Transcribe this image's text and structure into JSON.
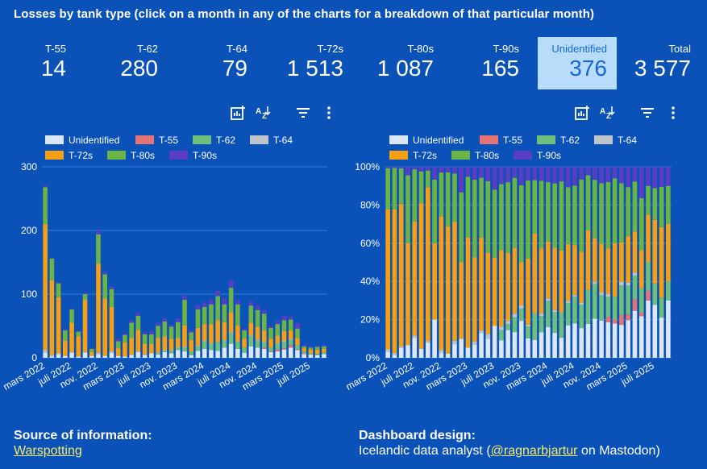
{
  "header": {
    "title": "Losses by tank type (click on a month in any of the charts for a breakdown of that particular month)"
  },
  "kpis": [
    {
      "label": "T-55",
      "value": "14",
      "selected": false
    },
    {
      "label": "T-62",
      "value": "280",
      "selected": false
    },
    {
      "label": "T-64",
      "value": "79",
      "selected": false
    },
    {
      "label": "T-72s",
      "value": "1 513",
      "selected": false
    },
    {
      "label": "T-80s",
      "value": "1 087",
      "selected": false
    },
    {
      "label": "T-90s",
      "value": "165",
      "selected": false
    },
    {
      "label": "Unidentified",
      "value": "376",
      "selected": true
    },
    {
      "label": "Total",
      "value": "3 577",
      "selected": false
    }
  ],
  "toolbar_icons": [
    "explore-chart-icon",
    "sort-az-icon",
    "filter-icon",
    "more-vert-icon"
  ],
  "legend": [
    {
      "name": "Unidentified",
      "color": "#dbe7f7"
    },
    {
      "name": "T-55",
      "color": "#e57373"
    },
    {
      "name": "T-62",
      "color": "#6fbf7b"
    },
    {
      "name": "T-64",
      "color": "#bfc4cc"
    },
    {
      "name": "T-72s",
      "color": "#f5a012"
    },
    {
      "name": "T-80s",
      "color": "#6bb345"
    },
    {
      "name": "T-90s",
      "color": "#5b3cc4"
    }
  ],
  "chart_data": [
    {
      "type": "bar",
      "stacked": true,
      "ylim": [
        0,
        300
      ],
      "yticks": [
        "0",
        "100",
        "200",
        "300"
      ],
      "xtick_labels": [
        "mars 2022",
        "juli 2022",
        "nov. 2022",
        "mars 2023",
        "juli 2023",
        "nov. 2023",
        "mars 2024",
        "juli 2024",
        "nov. 2024",
        "mars 2025",
        "juli 2025"
      ],
      "xtick_every": 4,
      "grid": true,
      "totals": [
        270,
        157,
        118,
        45,
        77,
        42,
        102,
        15,
        200,
        135,
        112,
        30,
        38,
        59,
        70,
        40,
        42,
        55,
        62,
        52,
        62,
        98,
        43,
        82,
        87,
        92,
        105,
        94,
        122,
        90,
        45,
        88,
        82,
        75,
        50,
        58,
        66,
        65,
        55,
        20,
        18,
        19,
        20
      ],
      "series": [
        {
          "name": "Unidentified",
          "values": [
            8,
            2,
            6,
            3,
            8,
            2,
            8,
            3,
            5,
            3,
            8,
            3,
            2,
            4,
            9,
            4,
            7,
            5,
            9,
            7,
            12,
            10,
            4,
            11,
            14,
            12,
            11,
            16,
            22,
            14,
            8,
            18,
            16,
            14,
            9,
            10,
            13,
            16,
            12,
            6,
            5,
            4,
            6
          ]
        },
        {
          "name": "T-55",
          "values": [
            0,
            0,
            0,
            0,
            0,
            0,
            0,
            0,
            0,
            0,
            0,
            0,
            0,
            0,
            0,
            0,
            0,
            0,
            0,
            0,
            0,
            0,
            0,
            0,
            0,
            0,
            0,
            0,
            0,
            0,
            0,
            0,
            0,
            2,
            1,
            3,
            2,
            4,
            1,
            1,
            0,
            0,
            0
          ]
        },
        {
          "name": "T-62",
          "values": [
            0,
            0,
            0,
            0,
            0,
            0,
            0,
            0,
            0,
            0,
            0,
            0,
            0,
            0,
            0,
            0,
            0,
            3,
            2,
            4,
            4,
            6,
            6,
            7,
            12,
            10,
            14,
            11,
            17,
            11,
            8,
            16,
            11,
            8,
            6,
            9,
            10,
            8,
            7,
            3,
            2,
            2,
            2
          ]
        },
        {
          "name": "T-64",
          "values": [
            4,
            2,
            1,
            0,
            1,
            0,
            1,
            0,
            3,
            0,
            2,
            0,
            0,
            1,
            1,
            1,
            0,
            1,
            1,
            1,
            1,
            1,
            0,
            1,
            1,
            1,
            0,
            1,
            1,
            1,
            0,
            1,
            1,
            1,
            0,
            1,
            1,
            1,
            0,
            0,
            0,
            0,
            0
          ]
        },
        {
          "name": "T-72s",
          "values": [
            198,
            118,
            88,
            24,
            46,
            32,
            82,
            6,
            140,
            90,
            70,
            12,
            22,
            26,
            34,
            17,
            15,
            22,
            22,
            18,
            14,
            34,
            18,
            28,
            26,
            30,
            34,
            28,
            32,
            24,
            14,
            20,
            21,
            18,
            14,
            12,
            16,
            14,
            11,
            5,
            6,
            7,
            6
          ]
        },
        {
          "name": "T-80s",
          "values": [
            58,
            34,
            22,
            16,
            21,
            7,
            9,
            5,
            46,
            38,
            28,
            11,
            12,
            24,
            22,
            15,
            15,
            19,
            23,
            19,
            25,
            40,
            12,
            29,
            27,
            31,
            38,
            28,
            38,
            34,
            13,
            27,
            26,
            26,
            17,
            18,
            17,
            17,
            15,
            3,
            3,
            4,
            4
          ]
        },
        {
          "name": "T-90s",
          "values": [
            2,
            1,
            1,
            2,
            1,
            1,
            2,
            1,
            6,
            4,
            4,
            4,
            2,
            4,
            4,
            3,
            5,
            5,
            5,
            3,
            6,
            7,
            3,
            6,
            7,
            8,
            8,
            10,
            12,
            6,
            2,
            6,
            7,
            6,
            3,
            5,
            7,
            5,
            9,
            2,
            2,
            2,
            2
          ]
        }
      ]
    },
    {
      "type": "bar",
      "stacked": true,
      "normalized": true,
      "ylim": [
        0,
        100
      ],
      "yticks": [
        "0%",
        "20%",
        "40%",
        "60%",
        "80%",
        "100%"
      ],
      "xtick_labels": [
        "mars 2022",
        "juli 2022",
        "nov. 2022",
        "mars 2023",
        "juli 2023",
        "nov. 2023",
        "mars 2024",
        "juli 2024",
        "nov. 2024",
        "mars 2025",
        "juli 2025"
      ],
      "xtick_every": 4,
      "grid": true,
      "series_ref": "same as first chart"
    }
  ],
  "footer": {
    "source_heading": "Source of information:",
    "source_link": "Warspotting",
    "design_heading": "Dashboard design:",
    "design_prefix": "Icelandic data analyst (",
    "design_link": "@ragnarbjartur",
    "design_suffix": " on Mastodon)"
  }
}
